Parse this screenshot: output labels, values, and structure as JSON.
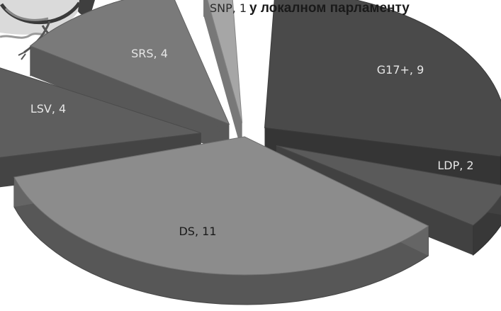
{
  "title": "у локалном парламенту",
  "chart_data": {
    "type": "pie",
    "title": "у локалном парламенту",
    "slices": [
      {
        "label": "G17+",
        "value": 9
      },
      {
        "label": "LDP",
        "value": 2
      },
      {
        "label": "DS",
        "value": 11
      },
      {
        "label": "LSV",
        "value": 4
      },
      {
        "label": "SRS",
        "value": 4
      },
      {
        "label": "SNP",
        "value": 1
      }
    ],
    "data_labels": [
      "G17+, 9",
      "LDP, 2",
      "DS, 11",
      "LSV, 4",
      "SRS, 4",
      "SNP, 1"
    ],
    "style": "3d-exploded",
    "colors": {
      "G17+": "#4a4a4a",
      "LDP": "#5a5a5a",
      "DS": "#8c8c8c",
      "LSV": "#5e5e5e",
      "SRS": "#7a7a7a",
      "SNP": "#a6a6a6",
      "background": "#ffffff"
    }
  }
}
